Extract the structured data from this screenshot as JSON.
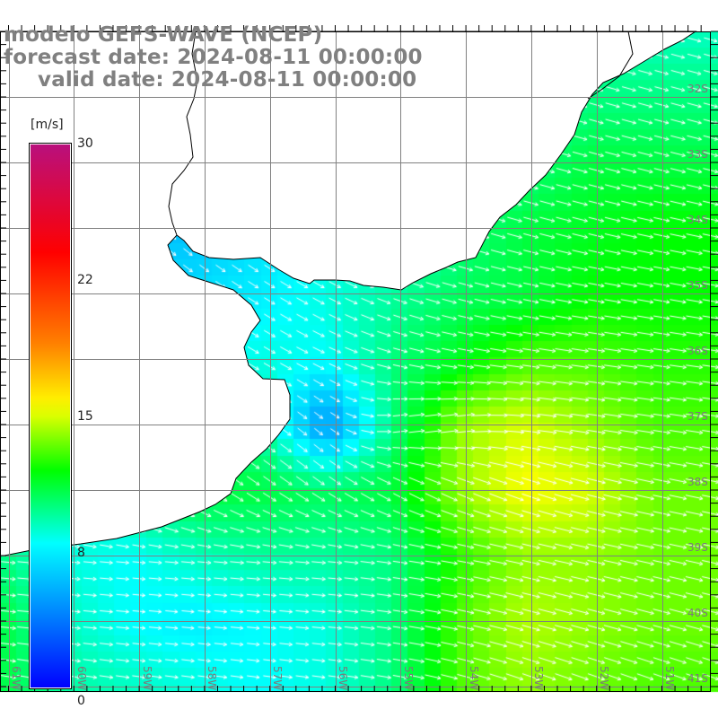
{
  "title": {
    "line1": "modelo GEFS-WAVE (NCEP)",
    "line2": "forecast date: 2024-08-11 00:00:00",
    "line3": "valid date: 2024-08-11 00:00:00"
  },
  "colorbar": {
    "unit": "[m/s]",
    "labels": [
      "30",
      "22",
      "15",
      "8",
      "0"
    ],
    "range": [
      0,
      30
    ],
    "stops": [
      {
        "v": 0,
        "color": "#0000ff"
      },
      {
        "v": 4,
        "color": "#0080ff"
      },
      {
        "v": 8,
        "color": "#00ffff"
      },
      {
        "v": 12,
        "color": "#00ff00"
      },
      {
        "v": 15.5,
        "color": "#ffff00"
      },
      {
        "v": 19,
        "color": "#ff8000"
      },
      {
        "v": 24,
        "color": "#ff0000"
      },
      {
        "v": 30,
        "color": "#b8107e"
      }
    ]
  },
  "lat_labels": [
    "32S",
    "33S",
    "34S",
    "35S",
    "36S",
    "37S",
    "38S",
    "39S",
    "40S",
    "41S"
  ],
  "lon_labels": [
    "61W",
    "60W",
    "59W",
    "58W",
    "57W",
    "56W",
    "55W",
    "54W",
    "53W",
    "52W",
    "51W"
  ],
  "wind": {
    "units": "m/s",
    "speed_grid_1deg": [
      [
        7,
        7,
        7,
        7,
        7,
        7,
        7,
        7,
        9,
        9,
        9
      ],
      [
        7,
        7,
        7,
        7,
        7,
        7,
        7,
        7,
        9,
        10,
        10
      ],
      [
        7,
        7,
        7,
        7,
        7,
        7,
        7,
        9,
        10,
        11,
        11
      ],
      [
        6.5,
        6.5,
        6,
        6,
        7,
        8,
        8.5,
        10,
        11,
        11.5,
        12
      ],
      [
        7,
        7,
        7,
        7,
        7.5,
        8.5,
        9.5,
        10.5,
        11,
        12,
        12
      ],
      [
        7,
        7,
        7,
        7.5,
        8.5,
        8,
        10,
        11.5,
        13,
        13,
        12.5
      ],
      [
        7,
        7,
        7,
        9,
        9.5,
        4.5,
        10,
        14,
        15,
        14,
        13
      ],
      [
        9,
        9,
        10,
        11,
        11,
        10.5,
        11,
        14,
        15.5,
        15,
        13.5
      ],
      [
        10,
        8.5,
        8,
        9,
        9.5,
        9.5,
        10,
        12.5,
        14,
        14,
        13.5
      ],
      [
        11,
        9,
        8,
        7.5,
        8,
        8.5,
        10,
        13,
        14.5,
        14,
        13.5
      ],
      [
        11,
        9.5,
        9,
        8.5,
        8,
        8.5,
        10,
        13,
        14,
        13.5,
        13
      ]
    ],
    "direction_deg_below_east_grid": [
      [
        35,
        35,
        35,
        35,
        35,
        30,
        25,
        20,
        18,
        16,
        15
      ],
      [
        35,
        35,
        35,
        35,
        35,
        30,
        25,
        20,
        18,
        16,
        15
      ],
      [
        35,
        35,
        35,
        35,
        30,
        28,
        22,
        18,
        16,
        15,
        14
      ],
      [
        40,
        40,
        40,
        40,
        35,
        30,
        25,
        18,
        15,
        14,
        12
      ],
      [
        35,
        35,
        35,
        35,
        32,
        28,
        20,
        15,
        12,
        10,
        10
      ],
      [
        30,
        30,
        30,
        32,
        30,
        25,
        15,
        10,
        8,
        8,
        8
      ],
      [
        30,
        30,
        30,
        35,
        35,
        40,
        -10,
        -10,
        5,
        8,
        8
      ],
      [
        35,
        35,
        35,
        35,
        35,
        35,
        30,
        25,
        20,
        15,
        12
      ],
      [
        5,
        5,
        5,
        5,
        5,
        5,
        8,
        10,
        12,
        12,
        12
      ],
      [
        5,
        5,
        5,
        5,
        5,
        5,
        8,
        12,
        15,
        15,
        15
      ],
      [
        10,
        10,
        8,
        8,
        8,
        8,
        10,
        15,
        20,
        20,
        20
      ]
    ]
  }
}
